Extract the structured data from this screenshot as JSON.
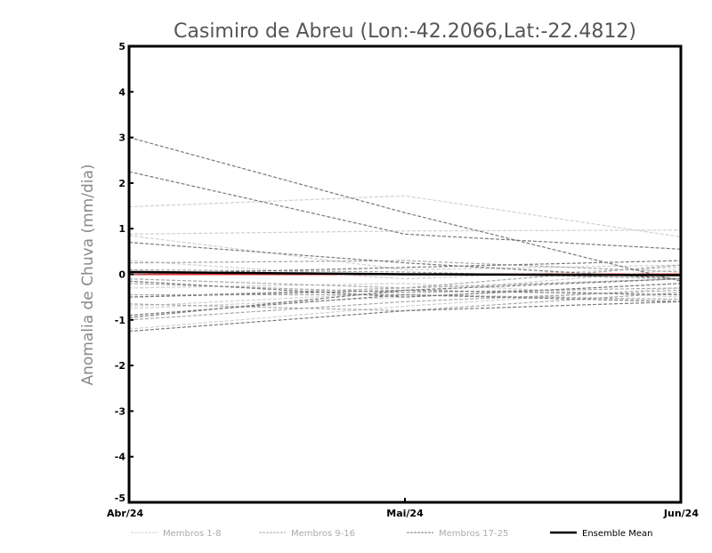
{
  "chart_data": {
    "type": "line",
    "title": "Casimiro de Abreu (Lon:-42.2066,Lat:-22.4812)",
    "xlabel": "",
    "ylabel": "Anomalia de Chuva (mm/dia)",
    "categories": [
      "Abr/24",
      "Mai/24",
      "Jun/24"
    ],
    "ylim": [
      -5,
      5
    ],
    "yticks": [
      "-5",
      "-4",
      "-3",
      "-2",
      "-1",
      "0",
      "1",
      "2",
      "3",
      "4",
      "5"
    ],
    "grid": false,
    "legend_position": "bottom",
    "colors": {
      "group1": "#d0d0d0",
      "group2": "#a8a8a8",
      "group3": "#7a7a7a",
      "mean": "#000000",
      "zero": "#e03030"
    },
    "groups": [
      {
        "name": "Membros 1-8",
        "color_key": "group1",
        "members": [
          [
            1.48,
            1.72,
            0.82
          ],
          [
            0.88,
            0.95,
            0.97
          ],
          [
            0.85,
            0.1,
            0.2
          ],
          [
            -0.7,
            -0.4,
            0.1
          ],
          [
            -1.2,
            -0.7,
            -0.3
          ],
          [
            0.3,
            -0.1,
            0.15
          ],
          [
            -0.3,
            -0.2,
            -0.5
          ],
          [
            -0.75,
            -0.5,
            -0.2
          ]
        ]
      },
      {
        "name": "Membros 9-16",
        "color_key": "group2",
        "members": [
          [
            0.25,
            0.3,
            0.05
          ],
          [
            -0.2,
            -0.4,
            -0.3
          ],
          [
            -0.5,
            -0.3,
            -0.1
          ],
          [
            -0.65,
            -0.8,
            -0.4
          ],
          [
            0.1,
            0.05,
            -0.1
          ],
          [
            -0.1,
            -0.3,
            0.2
          ],
          [
            -0.45,
            -0.45,
            -0.55
          ],
          [
            -1.0,
            -0.6,
            -0.35
          ]
        ]
      },
      {
        "name": "Membros 17-25",
        "color_key": "group3",
        "members": [
          [
            3.0,
            1.35,
            -0.15
          ],
          [
            2.25,
            0.88,
            0.55
          ],
          [
            0.7,
            0.25,
            -0.1
          ],
          [
            -0.15,
            -0.5,
            -0.2
          ],
          [
            -1.25,
            -0.8,
            -0.6
          ],
          [
            -0.9,
            -0.45,
            -0.6
          ],
          [
            0.0,
            0.15,
            0.3
          ],
          [
            -0.5,
            -0.35,
            -0.45
          ],
          [
            -0.95,
            -0.35,
            -0.1
          ]
        ]
      }
    ],
    "ensemble_mean": {
      "name": "Ensemble Mean",
      "values": [
        0.05,
        0.0,
        -0.02
      ]
    }
  }
}
